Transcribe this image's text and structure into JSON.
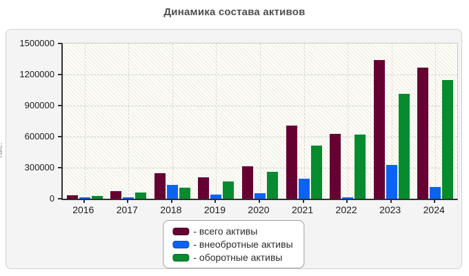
{
  "title": "Динамика состава активов",
  "ui": {
    "y_axis_label": "тыс.",
    "x_tick_labels": [
      "2016",
      "2017",
      "2018",
      "2019",
      "2020",
      "2021",
      "2022",
      "2023",
      "2024"
    ],
    "y_tick_labels": [
      "0",
      "300000",
      "600000",
      "900000",
      "1200000",
      "1500000"
    ]
  },
  "colors": {
    "total_assets": "#660033",
    "noncurrent_assets": "#0b63f6",
    "current_assets": "#068b2e",
    "total_assets_border": "#4a0126",
    "noncurrent_assets_border": "#0747b8",
    "current_assets_border": "#046423",
    "panel_bg": "#f4f4f4",
    "plot_bg": "#fdfdf6",
    "axis": "#2e2e2e",
    "grid": "#cccccc",
    "title_text": "#4e4e4e"
  },
  "chart_data": {
    "type": "bar",
    "title": "Динамика состава активов",
    "xlabel": "",
    "ylabel": "тыс.",
    "ylim": [
      0,
      1500000
    ],
    "ytick_step": 300000,
    "grid": true,
    "legend_position": "bottom-center",
    "categories": [
      "2016",
      "2017",
      "2018",
      "2019",
      "2020",
      "2021",
      "2022",
      "2023",
      "2024"
    ],
    "series": [
      {
        "name": "всего активы",
        "color": "#660033",
        "values": [
          35000,
          75000,
          245000,
          210000,
          315000,
          710000,
          630000,
          1340000,
          1265000
        ]
      },
      {
        "name": "внеобротные активы",
        "color": "#0b63f6",
        "values": [
          10000,
          13000,
          135000,
          40000,
          55000,
          195000,
          13000,
          325000,
          115000
        ]
      },
      {
        "name": "оборотные активы",
        "color": "#068b2e",
        "values": [
          25000,
          62000,
          110000,
          170000,
          260000,
          515000,
          617000,
          1015000,
          1150000
        ]
      }
    ],
    "legend": [
      {
        "label": "- всего активы",
        "color": "#660033"
      },
      {
        "label": "- внеобротные активы",
        "color": "#0b63f6"
      },
      {
        "label": "- оборотные активы",
        "color": "#068b2e"
      }
    ]
  }
}
